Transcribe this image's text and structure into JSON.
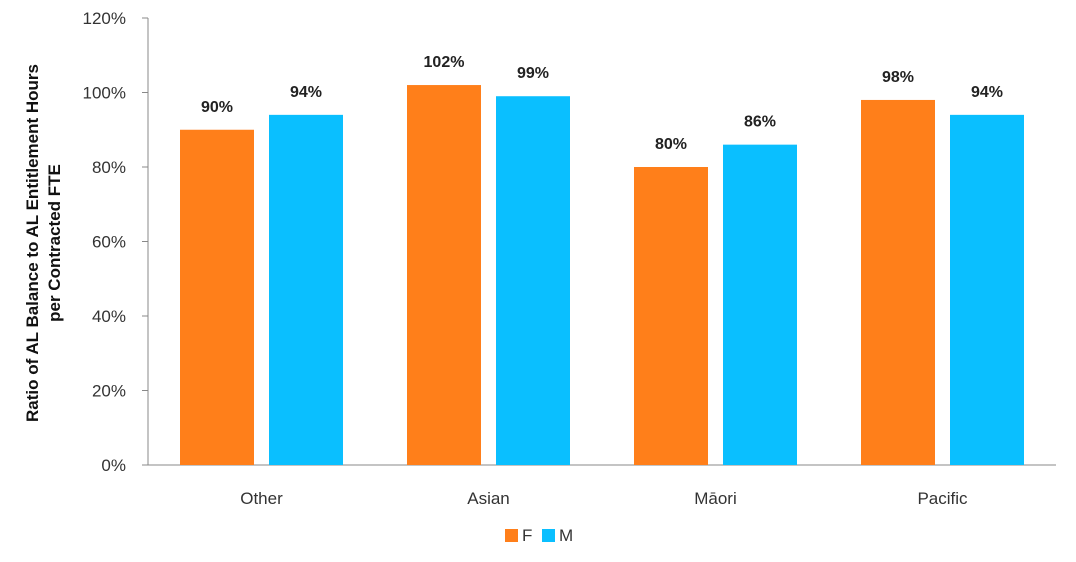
{
  "chart_data": {
    "type": "bar",
    "title": "",
    "xlabel": "",
    "ylabel_lines": [
      "Ratio of AL Balance to AL Entitlement Hours",
      "per Contracted FTE"
    ],
    "categories": [
      "Other",
      "Asian",
      "Māori",
      "Pacific"
    ],
    "series": [
      {
        "name": "F",
        "color": "#FF7F1A",
        "values": [
          90,
          102,
          80,
          98
        ],
        "labels": [
          "90%",
          "102%",
          "80%",
          "98%"
        ]
      },
      {
        "name": "M",
        "color": "#0ABFFF",
        "values": [
          94,
          99,
          86,
          94
        ],
        "labels": [
          "94%",
          "99%",
          "86%",
          "94%"
        ]
      }
    ],
    "ylim": [
      0,
      120
    ],
    "yticks": [
      0,
      20,
      40,
      60,
      80,
      100,
      120
    ],
    "ytick_labels": [
      "0%",
      "20%",
      "40%",
      "60%",
      "80%",
      "100%",
      "120%"
    ],
    "grid": false,
    "legend_position": "bottom"
  }
}
